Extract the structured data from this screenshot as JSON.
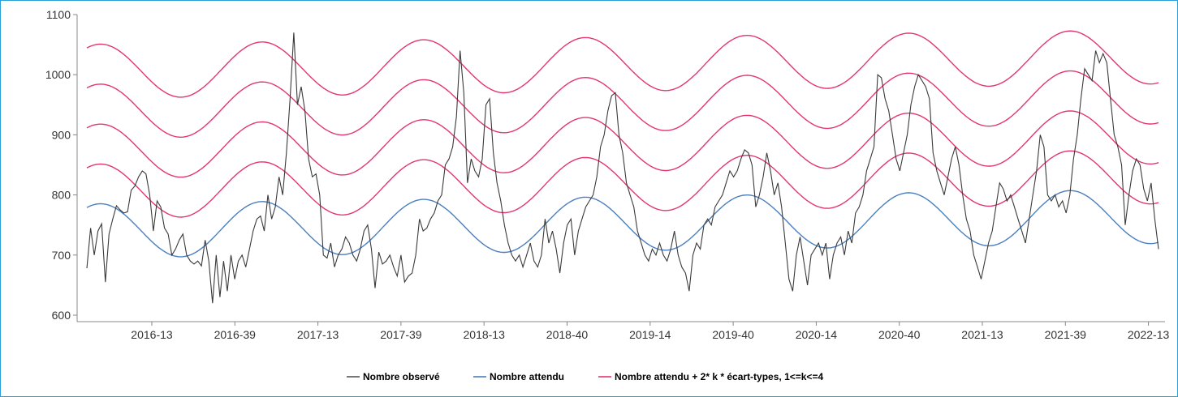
{
  "chart_data": {
    "type": "line",
    "y_ticks": [
      "600",
      "700",
      "800",
      "900",
      "1000",
      "1100"
    ],
    "x_ticks": [
      "2016-13",
      "2016-39",
      "2017-13",
      "2017-39",
      "2018-13",
      "2018-40",
      "2019-14",
      "2019-40",
      "2020-14",
      "2020-40",
      "2021-13",
      "2021-39",
      "2022-13"
    ],
    "ylim": [
      595,
      1100
    ],
    "x_range_weeks": [
      0,
      346
    ],
    "x_tick_positions_weeks": [
      36,
      62,
      88,
      114,
      140,
      167,
      193,
      219,
      245,
      271,
      297,
      323,
      349
    ],
    "grid": false,
    "legend_position": "bottom",
    "series": [
      {
        "name": "Nombre observé",
        "color": "#3a3a3a",
        "values": [
          678,
          745,
          700,
          740,
          752,
          655,
          735,
          760,
          782,
          775,
          770,
          772,
          808,
          815,
          830,
          840,
          835,
          800,
          740,
          790,
          780,
          745,
          735,
          700,
          710,
          725,
          735,
          700,
          690,
          685,
          690,
          682,
          725,
          690,
          620,
          700,
          630,
          690,
          640,
          700,
          660,
          690,
          700,
          680,
          710,
          740,
          760,
          765,
          740,
          800,
          760,
          780,
          830,
          800,
          870,
          960,
          1070,
          950,
          980,
          940,
          860,
          830,
          835,
          800,
          700,
          695,
          720,
          680,
          700,
          710,
          730,
          720,
          700,
          690,
          710,
          740,
          750,
          710,
          645,
          705,
          685,
          690,
          700,
          680,
          665,
          700,
          655,
          665,
          670,
          700,
          760,
          740,
          745,
          760,
          770,
          790,
          800,
          850,
          860,
          880,
          930,
          1040,
          970,
          820,
          860,
          840,
          830,
          860,
          950,
          960,
          870,
          820,
          790,
          750,
          720,
          700,
          690,
          700,
          680,
          700,
          720,
          690,
          680,
          700,
          760,
          720,
          740,
          710,
          670,
          720,
          750,
          760,
          700,
          740,
          760,
          780,
          790,
          800,
          830,
          880,
          900,
          940,
          965,
          970,
          900,
          870,
          820,
          800,
          780,
          740,
          720,
          700,
          690,
          710,
          700,
          720,
          700,
          690,
          710,
          740,
          700,
          680,
          670,
          640,
          700,
          720,
          710,
          750,
          760,
          750,
          780,
          790,
          800,
          820,
          840,
          830,
          840,
          860,
          875,
          870,
          850,
          780,
          800,
          830,
          870,
          840,
          800,
          820,
          780,
          720,
          660,
          640,
          700,
          730,
          690,
          650,
          700,
          710,
          720,
          700,
          720,
          660,
          700,
          720,
          730,
          700,
          740,
          720,
          770,
          780,
          800,
          840,
          860,
          880,
          1000,
          995,
          960,
          940,
          900,
          860,
          840,
          870,
          900,
          950,
          980,
          1000,
          990,
          980,
          960,
          870,
          840,
          820,
          800,
          830,
          860,
          880,
          850,
          800,
          760,
          740,
          700,
          680,
          660,
          690,
          720,
          740,
          780,
          820,
          810,
          790,
          800,
          780,
          760,
          740,
          720,
          760,
          800,
          840,
          900,
          880,
          800,
          790,
          800,
          780,
          790,
          770,
          800,
          860,
          900,
          960,
          1010,
          1000,
          990,
          1040,
          1020,
          1035,
          1020,
          960,
          900,
          880,
          850,
          750,
          800,
          840,
          860,
          850,
          810,
          790,
          820,
          760,
          710
        ]
      },
      {
        "name": "Nombre attendu",
        "color": "#4a7fc0"
      },
      {
        "name": "Nombre attendu + 2* k * écart-types, 1<=k<=4",
        "color": "#e3366f"
      }
    ],
    "expected_model": {
      "base": 740,
      "trend_per_week": 0.07,
      "amplitude": 45,
      "peak_week": 56.5,
      "period_weeks": 52.18,
      "band_step": 66
    }
  },
  "legend": [
    {
      "label": "Nombre observé",
      "color": "#555555"
    },
    {
      "label": "Nombre attendu",
      "color": "#4a7fc0"
    },
    {
      "label": "Nombre attendu + 2* k * écart-types, 1<=k<=4",
      "color": "#e3366f"
    }
  ],
  "colors": {
    "frame_border": "#2aa0d8",
    "axis": "#888888"
  }
}
